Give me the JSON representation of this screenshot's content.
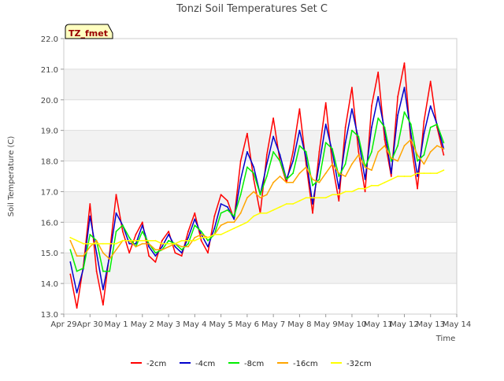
{
  "chart_data": {
    "type": "line",
    "title": "Tonzi Soil Temperatures Set C",
    "xlabel": "Time",
    "ylabel": "Soil Temperature (C)",
    "badge": "TZ_fmet",
    "xlim": [
      0,
      15
    ],
    "ylim": [
      13.0,
      22.0
    ],
    "y_ticks": [
      13.0,
      14.0,
      15.0,
      16.0,
      17.0,
      18.0,
      19.0,
      20.0,
      21.0,
      22.0
    ],
    "y_tick_labels": [
      "13.0",
      "14.0",
      "15.0",
      "16.0",
      "17.0",
      "18.0",
      "19.0",
      "20.0",
      "21.0",
      "22.0"
    ],
    "x_ticks": [
      0,
      1,
      2,
      3,
      4,
      5,
      6,
      7,
      8,
      9,
      10,
      11,
      12,
      13,
      14,
      15
    ],
    "x_tick_labels": [
      "Apr 29",
      "Apr 30",
      "May 1",
      "May 2",
      "May 3",
      "May 4",
      "May 5",
      "May 6",
      "May 7",
      "May 8",
      "May 9",
      "May 10",
      "May 11",
      "May 12",
      "May 13",
      "May 14"
    ],
    "grid": true,
    "legend_position": "bottom",
    "series": [
      {
        "name": "-2cm",
        "color": "#ff0000",
        "x": [
          0.25,
          0.5,
          0.75,
          1.0,
          1.25,
          1.5,
          1.75,
          2.0,
          2.25,
          2.5,
          2.75,
          3.0,
          3.25,
          3.5,
          3.75,
          4.0,
          4.25,
          4.5,
          4.75,
          5.0,
          5.25,
          5.5,
          5.75,
          6.0,
          6.25,
          6.5,
          6.75,
          7.0,
          7.25,
          7.5,
          7.75,
          8.0,
          8.25,
          8.5,
          8.75,
          9.0,
          9.25,
          9.5,
          9.75,
          10.0,
          10.25,
          10.5,
          10.75,
          11.0,
          11.25,
          11.5,
          11.75,
          12.0,
          12.25,
          12.5,
          12.75,
          13.0,
          13.25,
          13.5,
          13.75,
          14.0,
          14.25,
          14.5
        ],
        "values": [
          14.3,
          13.2,
          14.6,
          16.6,
          14.4,
          13.3,
          15.0,
          16.9,
          15.7,
          15.0,
          15.6,
          16.0,
          14.9,
          14.7,
          15.4,
          15.7,
          15.0,
          14.9,
          15.7,
          16.3,
          15.4,
          15.0,
          16.2,
          16.9,
          16.7,
          16.1,
          18.0,
          18.9,
          17.4,
          16.3,
          18.2,
          19.4,
          18.0,
          17.3,
          18.3,
          19.7,
          17.9,
          16.3,
          18.3,
          19.9,
          17.9,
          16.7,
          19.1,
          20.4,
          18.3,
          17.0,
          19.8,
          20.9,
          18.7,
          17.5,
          20.1,
          21.2,
          18.6,
          17.1,
          19.3,
          20.6,
          19.1,
          18.2
        ]
      },
      {
        "name": "-4cm",
        "color": "#0000cc",
        "x": [
          0.25,
          0.5,
          0.75,
          1.0,
          1.25,
          1.5,
          1.75,
          2.0,
          2.25,
          2.5,
          2.75,
          3.0,
          3.25,
          3.5,
          3.75,
          4.0,
          4.25,
          4.5,
          4.75,
          5.0,
          5.25,
          5.5,
          5.75,
          6.0,
          6.25,
          6.5,
          6.75,
          7.0,
          7.25,
          7.5,
          7.75,
          8.0,
          8.25,
          8.5,
          8.75,
          9.0,
          9.25,
          9.5,
          9.75,
          10.0,
          10.25,
          10.5,
          10.75,
          11.0,
          11.25,
          11.5,
          11.75,
          12.0,
          12.25,
          12.5,
          12.75,
          13.0,
          13.25,
          13.5,
          13.75,
          14.0,
          14.25,
          14.5
        ],
        "values": [
          14.7,
          13.7,
          14.5,
          16.2,
          15.0,
          13.8,
          14.9,
          16.3,
          15.9,
          15.3,
          15.3,
          15.9,
          15.2,
          14.9,
          15.2,
          15.6,
          15.2,
          15.0,
          15.5,
          16.1,
          15.6,
          15.2,
          15.8,
          16.6,
          16.5,
          16.1,
          17.4,
          18.3,
          17.8,
          16.9,
          17.9,
          18.8,
          18.2,
          17.4,
          18.0,
          19.0,
          18.1,
          16.6,
          17.9,
          19.2,
          18.3,
          17.1,
          18.6,
          19.7,
          18.7,
          17.4,
          19.1,
          20.1,
          19.0,
          17.6,
          19.5,
          20.4,
          18.9,
          17.5,
          18.9,
          19.8,
          19.2,
          18.4
        ]
      },
      {
        "name": "-8cm",
        "color": "#00ee00",
        "x": [
          0.25,
          0.5,
          0.75,
          1.0,
          1.25,
          1.5,
          1.75,
          2.0,
          2.25,
          2.5,
          2.75,
          3.0,
          3.25,
          3.5,
          3.75,
          4.0,
          4.25,
          4.5,
          4.75,
          5.0,
          5.25,
          5.5,
          5.75,
          6.0,
          6.25,
          6.5,
          6.75,
          7.0,
          7.25,
          7.5,
          7.75,
          8.0,
          8.25,
          8.5,
          8.75,
          9.0,
          9.25,
          9.5,
          9.75,
          10.0,
          10.25,
          10.5,
          10.75,
          11.0,
          11.25,
          11.5,
          11.75,
          12.0,
          12.25,
          12.5,
          12.75,
          13.0,
          13.25,
          13.5,
          13.75,
          14.0,
          14.25,
          14.5
        ],
        "values": [
          15.1,
          14.4,
          14.5,
          15.6,
          15.4,
          14.4,
          14.4,
          15.7,
          15.9,
          15.5,
          15.2,
          15.7,
          15.3,
          15.0,
          15.1,
          15.4,
          15.3,
          15.1,
          15.3,
          15.9,
          15.7,
          15.4,
          15.6,
          16.3,
          16.4,
          16.2,
          16.9,
          17.8,
          17.6,
          16.9,
          17.5,
          18.3,
          18.0,
          17.4,
          17.6,
          18.5,
          18.3,
          17.2,
          17.4,
          18.6,
          18.4,
          17.5,
          17.9,
          19.0,
          18.8,
          17.8,
          18.3,
          19.4,
          19.1,
          18.0,
          18.5,
          19.6,
          19.2,
          18.0,
          18.2,
          19.1,
          19.2,
          18.6
        ]
      },
      {
        "name": "-16cm",
        "color": "#ffa500",
        "x": [
          0.25,
          0.5,
          0.75,
          1.0,
          1.25,
          1.5,
          1.75,
          2.0,
          2.25,
          2.5,
          2.75,
          3.0,
          3.25,
          3.5,
          3.75,
          4.0,
          4.25,
          4.5,
          4.75,
          5.0,
          5.25,
          5.5,
          5.75,
          6.0,
          6.25,
          6.5,
          6.75,
          7.0,
          7.25,
          7.5,
          7.75,
          8.0,
          8.25,
          8.5,
          8.75,
          9.0,
          9.25,
          9.5,
          9.75,
          10.0,
          10.25,
          10.5,
          10.75,
          11.0,
          11.25,
          11.5,
          11.75,
          12.0,
          12.25,
          12.5,
          12.75,
          13.0,
          13.25,
          13.5,
          13.75,
          14.0,
          14.25,
          14.5
        ],
        "values": [
          15.4,
          14.9,
          14.9,
          15.2,
          15.4,
          15.0,
          14.8,
          15.1,
          15.4,
          15.4,
          15.2,
          15.3,
          15.3,
          15.1,
          15.1,
          15.2,
          15.3,
          15.2,
          15.2,
          15.5,
          15.6,
          15.5,
          15.6,
          15.9,
          16.0,
          16.0,
          16.3,
          16.8,
          17.0,
          16.8,
          16.9,
          17.3,
          17.5,
          17.3,
          17.3,
          17.6,
          17.8,
          17.4,
          17.3,
          17.6,
          17.9,
          17.6,
          17.5,
          17.9,
          18.2,
          17.8,
          17.7,
          18.3,
          18.5,
          18.1,
          18.0,
          18.5,
          18.7,
          18.2,
          17.9,
          18.3,
          18.5,
          18.4
        ]
      },
      {
        "name": "-32cm",
        "color": "#ffff00",
        "x": [
          0.25,
          0.5,
          0.75,
          1.0,
          1.25,
          1.5,
          1.75,
          2.0,
          2.25,
          2.5,
          2.75,
          3.0,
          3.25,
          3.5,
          3.75,
          4.0,
          4.25,
          4.5,
          4.75,
          5.0,
          5.25,
          5.5,
          5.75,
          6.0,
          6.25,
          6.5,
          6.75,
          7.0,
          7.25,
          7.5,
          7.75,
          8.0,
          8.25,
          8.5,
          8.75,
          9.0,
          9.25,
          9.5,
          9.75,
          10.0,
          10.25,
          10.5,
          10.75,
          11.0,
          11.25,
          11.5,
          11.75,
          12.0,
          12.25,
          12.5,
          12.75,
          13.0,
          13.25,
          13.5,
          13.75,
          14.0,
          14.25,
          14.5
        ],
        "values": [
          15.5,
          15.4,
          15.3,
          15.3,
          15.3,
          15.3,
          15.3,
          15.3,
          15.4,
          15.4,
          15.4,
          15.4,
          15.4,
          15.4,
          15.3,
          15.3,
          15.3,
          15.4,
          15.4,
          15.4,
          15.5,
          15.5,
          15.6,
          15.6,
          15.7,
          15.8,
          15.9,
          16.0,
          16.2,
          16.3,
          16.3,
          16.4,
          16.5,
          16.6,
          16.6,
          16.7,
          16.8,
          16.8,
          16.8,
          16.8,
          16.9,
          16.9,
          17.0,
          17.0,
          17.1,
          17.1,
          17.2,
          17.2,
          17.3,
          17.4,
          17.5,
          17.5,
          17.5,
          17.6,
          17.6,
          17.6,
          17.6,
          17.7
        ]
      }
    ]
  }
}
